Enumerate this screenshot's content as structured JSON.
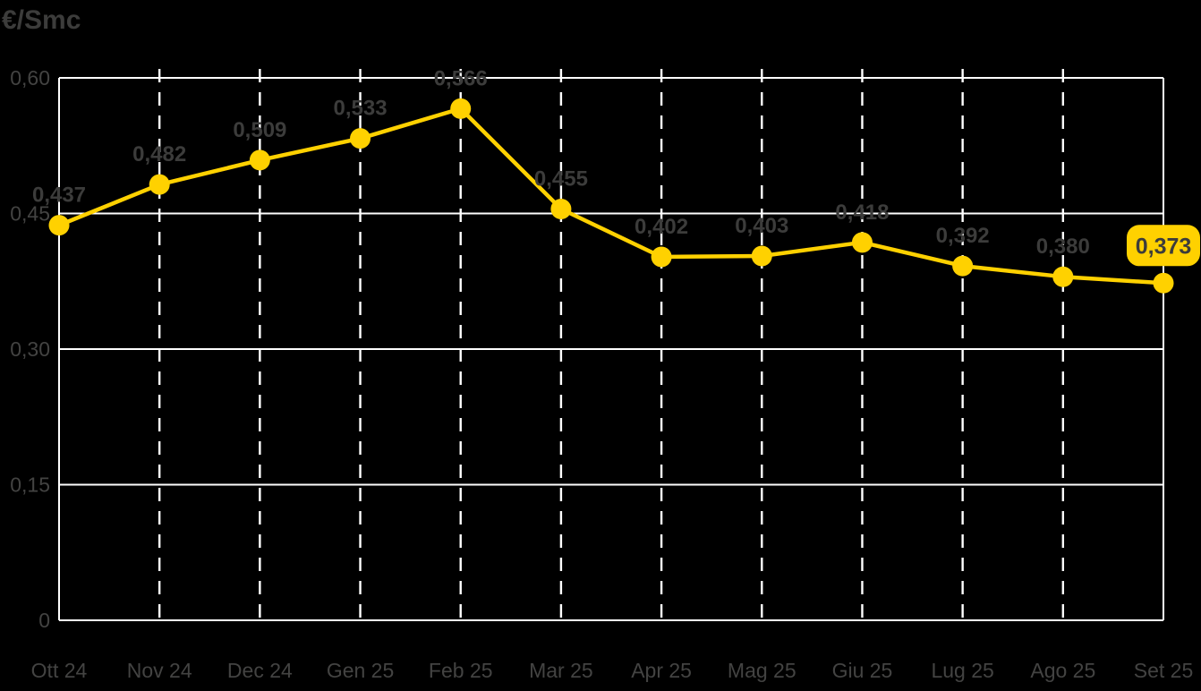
{
  "title": "€/Smc",
  "colors": {
    "background": "#000000",
    "accent_yellow": "#FFD100",
    "grid_white": "#FFFFFF",
    "text_gray": "#3C3C3B",
    "axis_text_gray": "#434342"
  },
  "chart_data": {
    "type": "line",
    "title": "€/Smc",
    "ylabel": "€/Smc",
    "xlabel": "",
    "categories": [
      "Ott 24",
      "Nov 24",
      "Dec 24",
      "Gen 25",
      "Feb 25",
      "Mar 25",
      "Apr 25",
      "Mag 25",
      "Giu 25",
      "Lug 25",
      "Ago 25",
      "Set 25"
    ],
    "values": [
      0.437,
      0.482,
      0.509,
      0.533,
      0.566,
      0.455,
      0.402,
      0.403,
      0.418,
      0.392,
      0.38,
      0.373
    ],
    "value_labels": [
      "0,437",
      "0,482",
      "0,509",
      "0,533",
      "0,566",
      "0,455",
      "0,402",
      "0,403",
      "0,418",
      "0,392",
      "0,380",
      "0,373"
    ],
    "highlighted_last_value": "0,373",
    "y_ticks": [
      0,
      0.15,
      0.3,
      0.45,
      0.6
    ],
    "y_tick_labels": [
      "0",
      "0,15",
      "0,30",
      "0,45",
      "0,60"
    ],
    "ylim": [
      0,
      0.6
    ],
    "grid": true,
    "gridline_style": {
      "horizontal": "solid",
      "vertical": "dashed"
    },
    "legend_position": "none",
    "line_color": "#FFD100",
    "marker": "circle"
  }
}
